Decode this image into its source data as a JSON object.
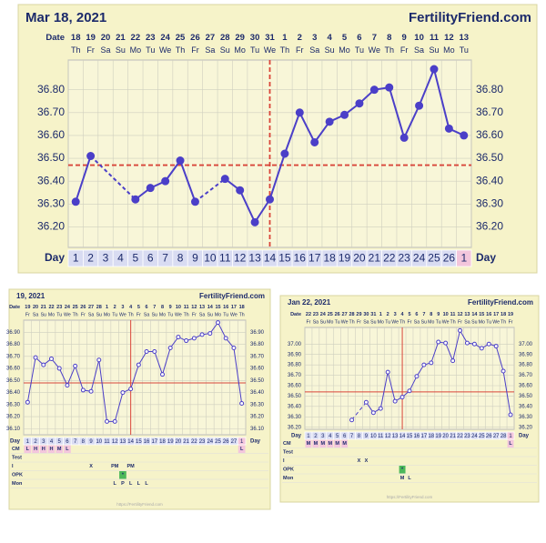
{
  "chart_data": [
    {
      "type": "line",
      "title": "Mar 18, 2021",
      "brand": "FertilityFriend.com",
      "date_label": "Date",
      "day_label": "Day",
      "dates": [
        "18",
        "19",
        "20",
        "21",
        "22",
        "23",
        "24",
        "25",
        "26",
        "27",
        "28",
        "29",
        "30",
        "31",
        "1",
        "2",
        "3",
        "4",
        "5",
        "6",
        "7",
        "8",
        "9",
        "10",
        "11",
        "12",
        "13"
      ],
      "weekdays": [
        "Th",
        "Fr",
        "Sa",
        "Su",
        "Mo",
        "Tu",
        "We",
        "Th",
        "Fr",
        "Sa",
        "Su",
        "Mo",
        "Tu",
        "We",
        "Th",
        "Fr",
        "Sa",
        "Su",
        "Mo",
        "Tu",
        "We",
        "Th",
        "Fr",
        "Sa",
        "Su",
        "Mo",
        "Tu"
      ],
      "days": [
        "1",
        "2",
        "3",
        "4",
        "5",
        "6",
        "7",
        "8",
        "9",
        "10",
        "11",
        "12",
        "13",
        "14",
        "15",
        "16",
        "17",
        "18",
        "19",
        "20",
        "21",
        "22",
        "23",
        "24",
        "25",
        "26",
        "1"
      ],
      "values": [
        36.31,
        36.51,
        null,
        null,
        36.32,
        36.37,
        36.4,
        36.49,
        36.31,
        null,
        36.41,
        36.36,
        36.22,
        36.32,
        36.52,
        36.7,
        36.57,
        36.66,
        36.69,
        36.74,
        36.8,
        36.81,
        36.59,
        36.73,
        36.89,
        36.63,
        36.6
      ],
      "color": "#4b3fc8",
      "ylim": [
        36.11,
        36.93
      ],
      "yticks": [
        {
          "value": 36.2,
          "label": "36.20"
        },
        {
          "value": 36.3,
          "label": "36.30"
        },
        {
          "value": 36.4,
          "label": "36.40"
        },
        {
          "value": 36.5,
          "label": "36.50"
        },
        {
          "value": 36.6,
          "label": "36.60"
        },
        {
          "value": 36.7,
          "label": "36.70"
        },
        {
          "value": 36.8,
          "label": "36.80"
        }
      ],
      "coverline": 36.47,
      "ovulation_index": 13,
      "rows": []
    },
    {
      "type": "line",
      "title": "19, 2021",
      "brand": "FertilityFriend.com",
      "date_label": "Date",
      "day_label": "Day",
      "footer": "https://FertilityFriend.com",
      "dates": [
        "19",
        "20",
        "21",
        "22",
        "23",
        "24",
        "25",
        "26",
        "27",
        "28",
        "1",
        "2",
        "3",
        "4",
        "5",
        "6",
        "7",
        "8",
        "9",
        "10",
        "11",
        "12",
        "13",
        "14",
        "15",
        "16",
        "17",
        "18"
      ],
      "weekdays": [
        "Fr",
        "Sa",
        "Su",
        "Mo",
        "Tu",
        "We",
        "Th",
        "Fr",
        "Sa",
        "Su",
        "Mo",
        "Tu",
        "We",
        "Th",
        "Fr",
        "Sa",
        "Su",
        "Mo",
        "Tu",
        "We",
        "Th",
        "Fr",
        "Sa",
        "Su",
        "Mo",
        "Tu",
        "We",
        "Th"
      ],
      "days": [
        "1",
        "2",
        "3",
        "4",
        "5",
        "6",
        "7",
        "8",
        "9",
        "10",
        "11",
        "12",
        "13",
        "14",
        "15",
        "16",
        "17",
        "18",
        "19",
        "20",
        "21",
        "22",
        "23",
        "24",
        "25",
        "26",
        "27",
        "1"
      ],
      "values": [
        36.32,
        36.69,
        36.63,
        36.68,
        36.6,
        36.46,
        36.62,
        36.42,
        36.41,
        36.67,
        36.16,
        36.16,
        36.4,
        36.43,
        36.63,
        36.74,
        36.74,
        36.55,
        36.77,
        36.86,
        36.83,
        36.85,
        36.88,
        36.89,
        36.98,
        36.85,
        36.77,
        36.31
      ],
      "color": "#4b3fc8",
      "ylim": [
        36.05,
        37.0
      ],
      "yticks": [
        {
          "value": 36.1,
          "label": "36.10"
        },
        {
          "value": 36.2,
          "label": "36.20"
        },
        {
          "value": 36.3,
          "label": "36.30"
        },
        {
          "value": 36.4,
          "label": "36.40"
        },
        {
          "value": 36.5,
          "label": "36.50"
        },
        {
          "value": 36.6,
          "label": "36.60"
        },
        {
          "value": 36.7,
          "label": "36.70"
        },
        {
          "value": 36.8,
          "label": "36.80"
        },
        {
          "value": 36.9,
          "label": "36.90"
        }
      ],
      "coverline": 36.48,
      "ovulation_index": 13,
      "rows": [
        {
          "label": "CM",
          "cells": [
            {
              "i": 0,
              "text": "L"
            },
            {
              "i": 1,
              "text": "H"
            },
            {
              "i": 2,
              "text": "H"
            },
            {
              "i": 3,
              "text": "H"
            },
            {
              "i": 4,
              "text": "M"
            },
            {
              "i": 5,
              "text": "L"
            },
            {
              "i": 27,
              "text": "L"
            }
          ]
        },
        {
          "label": "Test",
          "cells": []
        },
        {
          "label": "I",
          "cells": [
            {
              "i": 8,
              "text": "X"
            },
            {
              "i": 11,
              "text": "PM"
            },
            {
              "i": 13,
              "text": "PM"
            }
          ]
        },
        {
          "label": "OPK",
          "cells": [
            {
              "i": 12,
              "text": "*"
            }
          ]
        },
        {
          "label": "Mon",
          "cells": [
            {
              "i": 11,
              "text": "L"
            },
            {
              "i": 12,
              "text": "P"
            },
            {
              "i": 13,
              "text": "L"
            },
            {
              "i": 14,
              "text": "L"
            },
            {
              "i": 15,
              "text": "L"
            }
          ]
        }
      ]
    },
    {
      "type": "line",
      "title": "Jan 22, 2021",
      "brand": "FertilityFriend.com",
      "date_label": "Date",
      "day_label": "Day",
      "footer": "https://FertilityFriend.com",
      "dates": [
        "22",
        "23",
        "24",
        "25",
        "26",
        "27",
        "28",
        "29",
        "30",
        "31",
        "1",
        "2",
        "3",
        "4",
        "5",
        "6",
        "7",
        "8",
        "9",
        "10",
        "11",
        "12",
        "13",
        "14",
        "15",
        "16",
        "17",
        "18",
        "19"
      ],
      "weekdays": [
        "Fr",
        "Sa",
        "Su",
        "Mo",
        "Tu",
        "We",
        "Th",
        "Fr",
        "Sa",
        "Su",
        "Mo",
        "Tu",
        "We",
        "Th",
        "Fr",
        "Sa",
        "Su",
        "Mo",
        "Tu",
        "We",
        "Th",
        "Fr",
        "Sa",
        "Su",
        "Mo",
        "Tu",
        "We",
        "Th",
        "Fr"
      ],
      "days": [
        "1",
        "2",
        "3",
        "4",
        "5",
        "6",
        "7",
        "8",
        "9",
        "10",
        "11",
        "12",
        "13",
        "14",
        "15",
        "16",
        "17",
        "18",
        "19",
        "20",
        "21",
        "22",
        "23",
        "24",
        "25",
        "26",
        "27",
        "28",
        "1"
      ],
      "values": [
        null,
        null,
        null,
        null,
        null,
        null,
        36.27,
        null,
        36.44,
        36.34,
        36.38,
        36.73,
        36.45,
        36.49,
        36.55,
        36.69,
        36.8,
        36.82,
        37.02,
        37.01,
        36.84,
        37.13,
        37.01,
        37.0,
        36.96,
        37.0,
        36.98,
        36.74,
        36.32
      ],
      "color": "#4b3fc8",
      "ylim": [
        36.18,
        37.16
      ],
      "yticks": [
        {
          "value": 36.2,
          "label": "36.20"
        },
        {
          "value": 36.3,
          "label": "36.30"
        },
        {
          "value": 36.4,
          "label": "36.40"
        },
        {
          "value": 36.5,
          "label": "36.50"
        },
        {
          "value": 36.6,
          "label": "36.60"
        },
        {
          "value": 36.7,
          "label": "36.70"
        },
        {
          "value": 36.8,
          "label": "36.80"
        },
        {
          "value": 36.9,
          "label": "36.90"
        },
        {
          "value": 37.0,
          "label": "37.00"
        }
      ],
      "coverline": 36.54,
      "ovulation_index": 13,
      "rows": [
        {
          "label": "CM",
          "cells": [
            {
              "i": 0,
              "text": "M"
            },
            {
              "i": 1,
              "text": "M"
            },
            {
              "i": 2,
              "text": "M"
            },
            {
              "i": 3,
              "text": "M"
            },
            {
              "i": 4,
              "text": "M"
            },
            {
              "i": 5,
              "text": "M"
            },
            {
              "i": 28,
              "text": "L"
            }
          ]
        },
        {
          "label": "Test",
          "cells": []
        },
        {
          "label": "I",
          "cells": [
            {
              "i": 7,
              "text": "X"
            },
            {
              "i": 8,
              "text": "X"
            }
          ]
        },
        {
          "label": "OPK",
          "cells": [
            {
              "i": 13,
              "text": "*"
            }
          ]
        },
        {
          "label": "Mon",
          "cells": [
            {
              "i": 13,
              "text": "M"
            },
            {
              "i": 14,
              "text": "L"
            }
          ]
        }
      ]
    }
  ]
}
